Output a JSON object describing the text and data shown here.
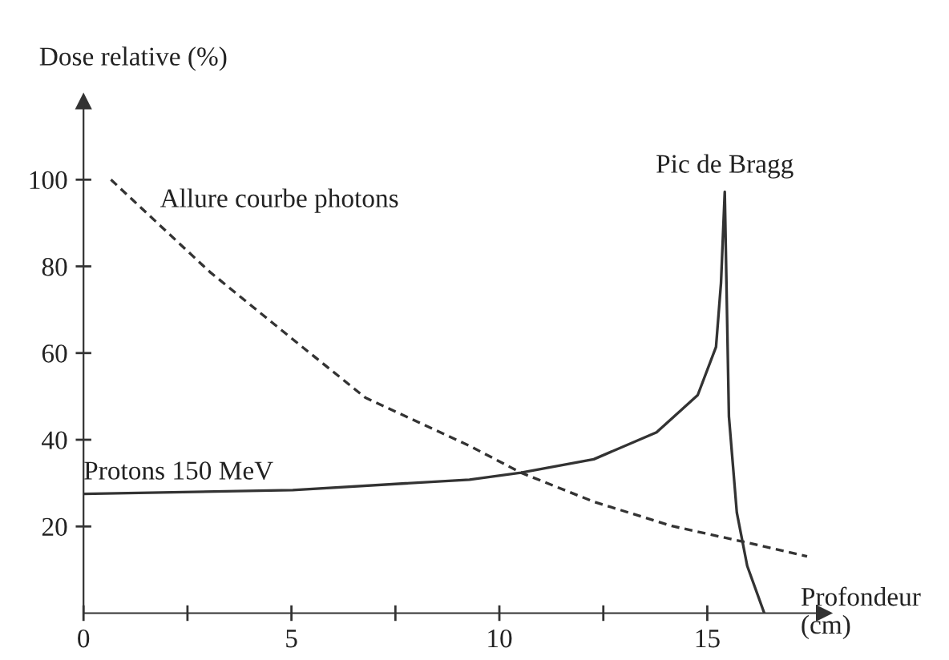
{
  "chart_data": {
    "type": "line",
    "ylabel": "Dose relative (%)",
    "xlabel": "Profondeur\n(cm)",
    "xlim": [
      0,
      17.8
    ],
    "ylim": [
      0,
      118
    ],
    "xticks": [
      0,
      {
        "value": 2.5,
        "label": null
      },
      5,
      {
        "value": 7.5,
        "label": null
      },
      10,
      {
        "value": 12.5,
        "label": null
      },
      15
    ],
    "yticks": [
      20,
      40,
      60,
      80,
      100
    ],
    "grid": false,
    "legend": false,
    "marker": "none",
    "annotations": [
      {
        "text": "Pic de Bragg",
        "x": 15.42,
        "y": 97.2
      }
    ],
    "series": [
      {
        "name": "Allure courbe photons",
        "color": "#333333",
        "line_style": "dashed",
        "x": [
          0.66,
          3.04,
          5.03,
          6.78,
          9.28,
          10.52,
          12.27,
          14.15,
          15.9,
          17.4
        ],
        "values": [
          100,
          78.7,
          63.2,
          49.7,
          38.6,
          32.4,
          25.7,
          20.1,
          16.4,
          13.1
        ]
      },
      {
        "name": "Protons 150 MeV",
        "color": "#333333",
        "line_style": "solid",
        "x": [
          0,
          5.03,
          9.28,
          10.52,
          12.27,
          13.78,
          14.77,
          15.21,
          15.33,
          15.42,
          15.52,
          15.71,
          15.96,
          16.37
        ],
        "values": [
          27.5,
          28.4,
          30.8,
          32.4,
          35.5,
          41.7,
          50.3,
          61.4,
          76.2,
          97.2,
          45.4,
          23.2,
          10.9,
          0
        ]
      }
    ]
  }
}
